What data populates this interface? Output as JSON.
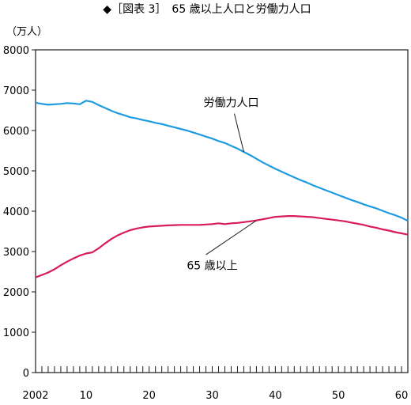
{
  "chart_data": {
    "type": "line",
    "title": "◆［図表 3］　65 歳以上人口と労働力人口",
    "unit_label": "（万人）",
    "xlim": [
      2002,
      2061
    ],
    "ylim": [
      0,
      8000
    ],
    "y_ticks": [
      0,
      1000,
      2000,
      3000,
      4000,
      5000,
      6000,
      7000,
      8000
    ],
    "x_tick_labels": [
      {
        "x": 2002,
        "label": "2002"
      },
      {
        "x": 2010,
        "label": "10"
      },
      {
        "x": 2020,
        "label": "20"
      },
      {
        "x": 2030,
        "label": "30"
      },
      {
        "x": 2040,
        "label": "40"
      },
      {
        "x": 2050,
        "label": "50"
      },
      {
        "x": 2060,
        "label": "60"
      }
    ],
    "grid": false,
    "legend": "inline",
    "series": [
      {
        "name": "労働力人口",
        "color": "#1e9be0",
        "label_at": [
          2033,
          6600
        ],
        "points": [
          [
            2002,
            6690
          ],
          [
            2003,
            6660
          ],
          [
            2004,
            6640
          ],
          [
            2005,
            6650
          ],
          [
            2006,
            6660
          ],
          [
            2007,
            6680
          ],
          [
            2008,
            6670
          ],
          [
            2009,
            6650
          ],
          [
            2010,
            6740
          ],
          [
            2011,
            6710
          ],
          [
            2012,
            6630
          ],
          [
            2013,
            6560
          ],
          [
            2014,
            6490
          ],
          [
            2015,
            6430
          ],
          [
            2016,
            6380
          ],
          [
            2017,
            6330
          ],
          [
            2018,
            6300
          ],
          [
            2019,
            6260
          ],
          [
            2020,
            6230
          ],
          [
            2021,
            6190
          ],
          [
            2022,
            6160
          ],
          [
            2023,
            6120
          ],
          [
            2024,
            6080
          ],
          [
            2025,
            6040
          ],
          [
            2026,
            6000
          ],
          [
            2027,
            5950
          ],
          [
            2028,
            5900
          ],
          [
            2029,
            5850
          ],
          [
            2030,
            5800
          ],
          [
            2031,
            5740
          ],
          [
            2032,
            5690
          ],
          [
            2033,
            5620
          ],
          [
            2034,
            5550
          ],
          [
            2035,
            5470
          ],
          [
            2036,
            5390
          ],
          [
            2037,
            5300
          ],
          [
            2038,
            5210
          ],
          [
            2039,
            5130
          ],
          [
            2040,
            5050
          ],
          [
            2041,
            4980
          ],
          [
            2042,
            4910
          ],
          [
            2043,
            4840
          ],
          [
            2044,
            4770
          ],
          [
            2045,
            4710
          ],
          [
            2046,
            4640
          ],
          [
            2047,
            4580
          ],
          [
            2048,
            4520
          ],
          [
            2049,
            4460
          ],
          [
            2050,
            4400
          ],
          [
            2051,
            4340
          ],
          [
            2052,
            4280
          ],
          [
            2053,
            4230
          ],
          [
            2054,
            4170
          ],
          [
            2055,
            4120
          ],
          [
            2056,
            4070
          ],
          [
            2057,
            4010
          ],
          [
            2058,
            3950
          ],
          [
            2059,
            3900
          ],
          [
            2060,
            3840
          ],
          [
            2061,
            3760
          ]
        ]
      },
      {
        "name": "65 歳以上",
        "color": "#d81b5b",
        "label_at": [
          2030,
          2560
        ],
        "points": [
          [
            2002,
            2360
          ],
          [
            2003,
            2420
          ],
          [
            2004,
            2480
          ],
          [
            2005,
            2560
          ],
          [
            2006,
            2660
          ],
          [
            2007,
            2750
          ],
          [
            2008,
            2830
          ],
          [
            2009,
            2900
          ],
          [
            2010,
            2950
          ],
          [
            2011,
            2980
          ],
          [
            2012,
            3080
          ],
          [
            2013,
            3200
          ],
          [
            2014,
            3310
          ],
          [
            2015,
            3400
          ],
          [
            2016,
            3470
          ],
          [
            2017,
            3530
          ],
          [
            2018,
            3570
          ],
          [
            2019,
            3600
          ],
          [
            2020,
            3620
          ],
          [
            2021,
            3630
          ],
          [
            2022,
            3640
          ],
          [
            2023,
            3650
          ],
          [
            2024,
            3655
          ],
          [
            2025,
            3660
          ],
          [
            2026,
            3660
          ],
          [
            2027,
            3660
          ],
          [
            2028,
            3660
          ],
          [
            2029,
            3670
          ],
          [
            2030,
            3680
          ],
          [
            2031,
            3700
          ],
          [
            2032,
            3680
          ],
          [
            2033,
            3700
          ],
          [
            2034,
            3710
          ],
          [
            2035,
            3730
          ],
          [
            2036,
            3750
          ],
          [
            2037,
            3770
          ],
          [
            2038,
            3800
          ],
          [
            2039,
            3830
          ],
          [
            2040,
            3860
          ],
          [
            2041,
            3870
          ],
          [
            2042,
            3880
          ],
          [
            2043,
            3880
          ],
          [
            2044,
            3870
          ],
          [
            2045,
            3860
          ],
          [
            2046,
            3850
          ],
          [
            2047,
            3830
          ],
          [
            2048,
            3810
          ],
          [
            2049,
            3790
          ],
          [
            2050,
            3770
          ],
          [
            2051,
            3750
          ],
          [
            2052,
            3720
          ],
          [
            2053,
            3690
          ],
          [
            2054,
            3660
          ],
          [
            2055,
            3620
          ],
          [
            2056,
            3590
          ],
          [
            2057,
            3550
          ],
          [
            2058,
            3520
          ],
          [
            2059,
            3480
          ],
          [
            2060,
            3450
          ],
          [
            2061,
            3420
          ]
        ]
      }
    ]
  }
}
